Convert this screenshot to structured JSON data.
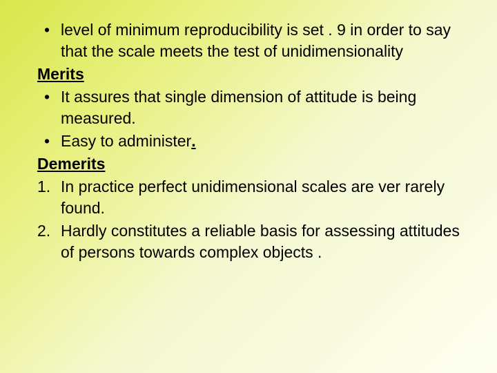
{
  "slide": {
    "bullet1": "level of minimum reproducibility is set . 9 in order to say that the scale meets the test of unidimensionality",
    "heading1": "Merits",
    "bullet2": "It assures that single dimension of attitude is being measured.",
    "bullet3_pre": "Easy to administer",
    "bullet3_period": ".",
    "heading2": "Demerits",
    "num1_marker": "1.",
    "num1_text": "In practice perfect unidimensional scales are ver rarely found.",
    "num2_marker": "2.",
    "num2_text": "Hardly constitutes a reliable basis for assessing attitudes of persons towards complex objects ."
  },
  "style": {
    "background_gradient": [
      "#d8e84a",
      "#e8f080",
      "#f5f8d0",
      "#fdfef0"
    ],
    "font_family": "Arial",
    "font_size_pt": 17,
    "text_color": "#000000",
    "bullet_char": "•"
  }
}
